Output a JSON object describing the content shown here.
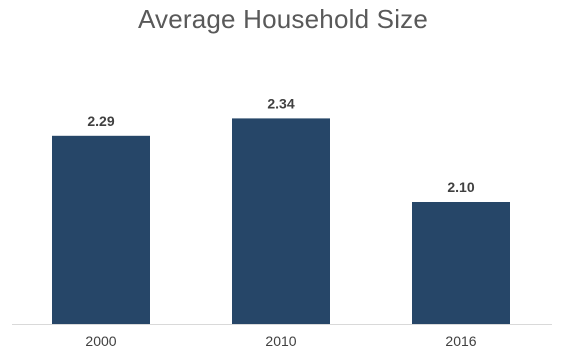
{
  "chart_data": {
    "type": "bar",
    "title": "Average Household Size",
    "categories": [
      "2000",
      "2010",
      "2016"
    ],
    "values": [
      2.29,
      2.34,
      2.1
    ],
    "data_labels": [
      "2.29",
      "2.34",
      "2.10"
    ],
    "xlabel": "",
    "ylabel": "",
    "ylim": [
      1.75,
      2.41
    ],
    "grid": false,
    "legend": "none",
    "colors": {
      "bar": "#264668",
      "axis": "#d9d9d9"
    }
  }
}
